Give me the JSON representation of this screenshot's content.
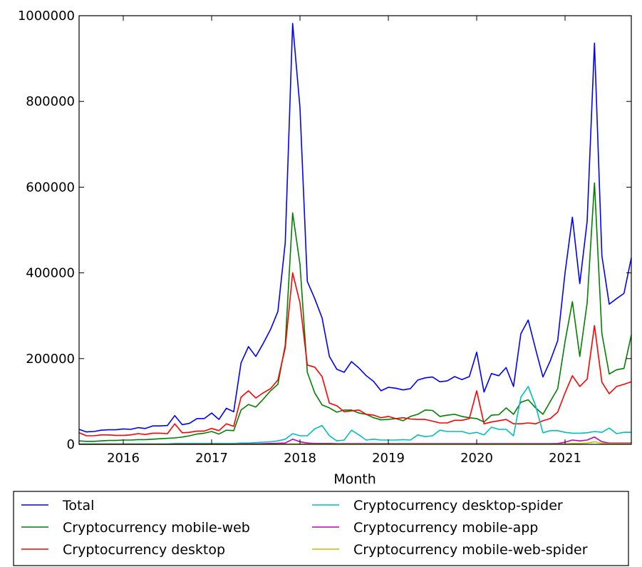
{
  "chart_data": {
    "type": "line",
    "xlabel": "Month",
    "ylabel": "",
    "x_range": [
      "2015-07",
      "2021-10"
    ],
    "ylim": [
      0,
      1000000
    ],
    "yticks": [
      "0",
      "200000",
      "400000",
      "600000",
      "800000",
      "1000000"
    ],
    "xticks": [
      {
        "label": "2016",
        "date": "2016-01"
      },
      {
        "label": "2017",
        "date": "2017-01"
      },
      {
        "label": "2018",
        "date": "2018-01"
      },
      {
        "label": "2019",
        "date": "2019-01"
      },
      {
        "label": "2020",
        "date": "2020-01"
      },
      {
        "label": "2021",
        "date": "2021-01"
      }
    ],
    "grid": false,
    "legend_placement": "below",
    "x": [
      "2015-07",
      "2015-08",
      "2015-09",
      "2015-10",
      "2015-11",
      "2015-12",
      "2016-01",
      "2016-02",
      "2016-03",
      "2016-04",
      "2016-05",
      "2016-06",
      "2016-07",
      "2016-08",
      "2016-09",
      "2016-10",
      "2016-11",
      "2016-12",
      "2017-01",
      "2017-02",
      "2017-03",
      "2017-04",
      "2017-05",
      "2017-06",
      "2017-07",
      "2017-08",
      "2017-09",
      "2017-10",
      "2017-11",
      "2017-12",
      "2018-01",
      "2018-02",
      "2018-03",
      "2018-04",
      "2018-05",
      "2018-06",
      "2018-07",
      "2018-08",
      "2018-09",
      "2018-10",
      "2018-11",
      "2018-12",
      "2019-01",
      "2019-02",
      "2019-03",
      "2019-04",
      "2019-05",
      "2019-06",
      "2019-07",
      "2019-08",
      "2019-09",
      "2019-10",
      "2019-11",
      "2019-12",
      "2020-01",
      "2020-02",
      "2020-03",
      "2020-04",
      "2020-05",
      "2020-06",
      "2020-07",
      "2020-08",
      "2020-09",
      "2020-10",
      "2020-11",
      "2020-12",
      "2021-01",
      "2021-02",
      "2021-03",
      "2021-04",
      "2021-05",
      "2021-06",
      "2021-07",
      "2021-08",
      "2021-09",
      "2021-10"
    ],
    "series": [
      {
        "name": "Total",
        "color": "#0000ff",
        "values": [
          35000,
          29000,
          30000,
          33000,
          34000,
          34000,
          36000,
          35000,
          39000,
          37000,
          43000,
          43000,
          44000,
          67000,
          46000,
          49000,
          60000,
          60000,
          73000,
          58000,
          84000,
          76000,
          190000,
          228000,
          205000,
          235000,
          268000,
          310000,
          470000,
          982000,
          785000,
          380000,
          340000,
          295000,
          205000,
          175000,
          168000,
          193000,
          178000,
          160000,
          147000,
          125000,
          133000,
          131000,
          127000,
          130000,
          150000,
          155000,
          157000,
          146000,
          148000,
          158000,
          151000,
          158000,
          215000,
          122000,
          165000,
          160000,
          179000,
          135000,
          258000,
          290000,
          222000,
          157000,
          195000,
          242000,
          400000,
          530000,
          375000,
          520000,
          936000,
          440000,
          327000,
          340000,
          352000,
          435000
        ]
      },
      {
        "name": "Cryptocurrency mobile-web",
        "color": "#008000",
        "values": [
          8000,
          7000,
          7000,
          8000,
          9000,
          9000,
          10000,
          10000,
          11000,
          11000,
          12000,
          13000,
          14000,
          15000,
          17000,
          20000,
          24000,
          26000,
          30000,
          24000,
          33000,
          32000,
          80000,
          93000,
          87000,
          105000,
          125000,
          140000,
          232000,
          540000,
          420000,
          168000,
          120000,
          92000,
          85000,
          75000,
          80000,
          80000,
          73000,
          70000,
          62000,
          57000,
          58000,
          60000,
          55000,
          65000,
          70000,
          80000,
          79000,
          65000,
          68000,
          70000,
          65000,
          62000,
          60000,
          52000,
          68000,
          69000,
          85000,
          70000,
          98000,
          104000,
          85000,
          70000,
          100000,
          130000,
          240000,
          333000,
          205000,
          330000,
          610000,
          258000,
          164000,
          174000,
          177000,
          255000
        ]
      },
      {
        "name": "Cryptocurrency desktop",
        "color": "#ff0000",
        "values": [
          27000,
          20000,
          20000,
          22000,
          22000,
          21000,
          21000,
          22000,
          25000,
          23000,
          26000,
          26000,
          25000,
          48000,
          27000,
          28000,
          31000,
          31000,
          37000,
          32000,
          48000,
          42000,
          110000,
          125000,
          108000,
          120000,
          130000,
          150000,
          225000,
          400000,
          330000,
          185000,
          180000,
          158000,
          96000,
          90000,
          76000,
          78000,
          80000,
          70000,
          68000,
          62000,
          65000,
          60000,
          62000,
          59000,
          58000,
          58000,
          54000,
          50000,
          50000,
          56000,
          56000,
          60000,
          125000,
          48000,
          52000,
          55000,
          58000,
          48000,
          48000,
          50000,
          48000,
          55000,
          60000,
          75000,
          120000,
          160000,
          135000,
          152000,
          277000,
          145000,
          118000,
          135000,
          140000,
          146000
        ]
      },
      {
        "name": "Cryptocurrency desktop-spider",
        "color": "#00bfbf",
        "values": [
          1000,
          1000,
          1000,
          1000,
          1000,
          1000,
          1000,
          1000,
          1000,
          1000,
          1000,
          1000,
          1000,
          2000,
          2000,
          2000,
          2000,
          2000,
          2000,
          2000,
          2000,
          2000,
          3000,
          3000,
          4000,
          5000,
          6000,
          8000,
          12000,
          25000,
          20000,
          20000,
          36000,
          44000,
          20000,
          8000,
          10000,
          33000,
          22000,
          10000,
          12000,
          10000,
          10000,
          10000,
          11000,
          10000,
          22000,
          18000,
          20000,
          33000,
          30000,
          30000,
          30000,
          25000,
          28000,
          22000,
          40000,
          35000,
          35000,
          20000,
          110000,
          135000,
          90000,
          27000,
          32000,
          32000,
          28000,
          26000,
          26000,
          27000,
          30000,
          28000,
          38000,
          25000,
          28000,
          28000
        ]
      },
      {
        "name": "Cryptocurrency mobile-app",
        "color": "#bf00bf",
        "values": [
          0,
          0,
          0,
          0,
          0,
          0,
          0,
          0,
          0,
          0,
          0,
          0,
          0,
          0,
          0,
          0,
          0,
          0,
          0,
          0,
          0,
          0,
          1000,
          1000,
          1000,
          1500,
          2000,
          2500,
          3000,
          12000,
          6000,
          3000,
          2000,
          2000,
          2000,
          1500,
          1500,
          1500,
          1500,
          1500,
          1500,
          1500,
          1500,
          1500,
          1500,
          1500,
          1500,
          1500,
          1500,
          1500,
          1500,
          1500,
          1500,
          1500,
          1500,
          1500,
          1500,
          1500,
          1500,
          1500,
          1500,
          1500,
          1500,
          1500,
          1500,
          2000,
          5000,
          10000,
          8000,
          10000,
          17000,
          6000,
          3000,
          3000,
          3000,
          3000
        ]
      },
      {
        "name": "Cryptocurrency mobile-web-spider",
        "color": "#bfbf00",
        "values": [
          0,
          0,
          0,
          0,
          0,
          0,
          0,
          0,
          0,
          0,
          0,
          0,
          0,
          0,
          0,
          0,
          0,
          0,
          0,
          0,
          0,
          0,
          0,
          0,
          0,
          0,
          0,
          0,
          500,
          1000,
          800,
          500,
          500,
          500,
          500,
          500,
          500,
          500,
          500,
          500,
          500,
          500,
          500,
          500,
          500,
          500,
          500,
          500,
          500,
          500,
          500,
          500,
          500,
          500,
          500,
          500,
          500,
          500,
          500,
          500,
          500,
          500,
          500,
          500,
          500,
          500,
          1000,
          2000,
          2000,
          3000,
          6000,
          2000,
          1500,
          1500,
          1500,
          1500
        ]
      }
    ]
  }
}
